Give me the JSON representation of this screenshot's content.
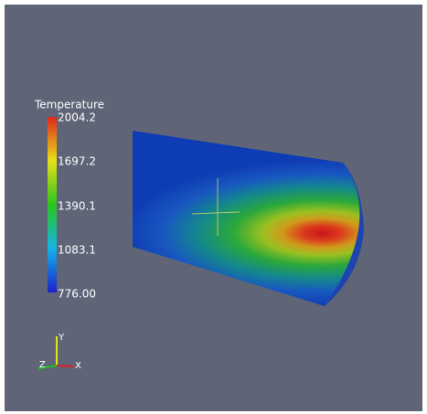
{
  "legend": {
    "title": "Temperature",
    "labels": [
      "2004.2",
      "1697.2",
      "1390.1",
      "1083.1",
      "776.00"
    ]
  },
  "axes": {
    "y": "Y",
    "z": "Z",
    "x": "X"
  }
}
